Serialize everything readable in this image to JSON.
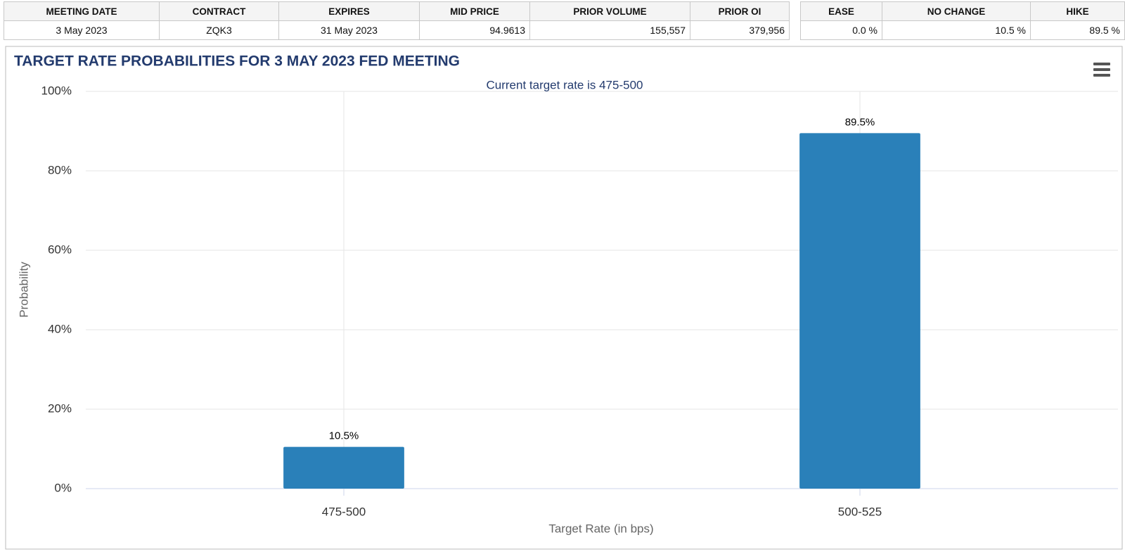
{
  "tables": [
    {
      "headers": [
        "MEETING DATE",
        "CONTRACT",
        "EXPIRES",
        "MID PRICE",
        "PRIOR VOLUME",
        "PRIOR OI"
      ],
      "rows": [
        [
          "3 May 2023",
          "ZQK3",
          "31 May 2023",
          "94.9613",
          "155,557",
          "379,956"
        ]
      ]
    },
    {
      "headers": [
        "EASE",
        "NO CHANGE",
        "HIKE"
      ],
      "rows": [
        [
          "0.0 %",
          "10.5 %",
          "89.5 %"
        ]
      ]
    }
  ],
  "chart_data": {
    "type": "bar",
    "title": "TARGET RATE PROBABILITIES FOR 3 MAY 2023 FED MEETING",
    "annotation": "Current target rate is 475-500",
    "x_label": "Target Rate (in bps)",
    "y_label": "Probability",
    "categories": [
      "475-500",
      "500-525"
    ],
    "values": [
      10.5,
      89.5
    ],
    "value_labels": [
      "10.5%",
      "89.5%"
    ],
    "color": "#2a80b9",
    "ylim": [
      0,
      100
    ],
    "yticks": [
      {
        "value": 0,
        "label": "0%"
      },
      {
        "value": 20,
        "label": "20%"
      },
      {
        "value": 40,
        "label": "40%"
      },
      {
        "value": 60,
        "label": "60%"
      },
      {
        "value": 80,
        "label": "80%"
      },
      {
        "value": 100,
        "label": "100%"
      }
    ],
    "grid": true
  }
}
